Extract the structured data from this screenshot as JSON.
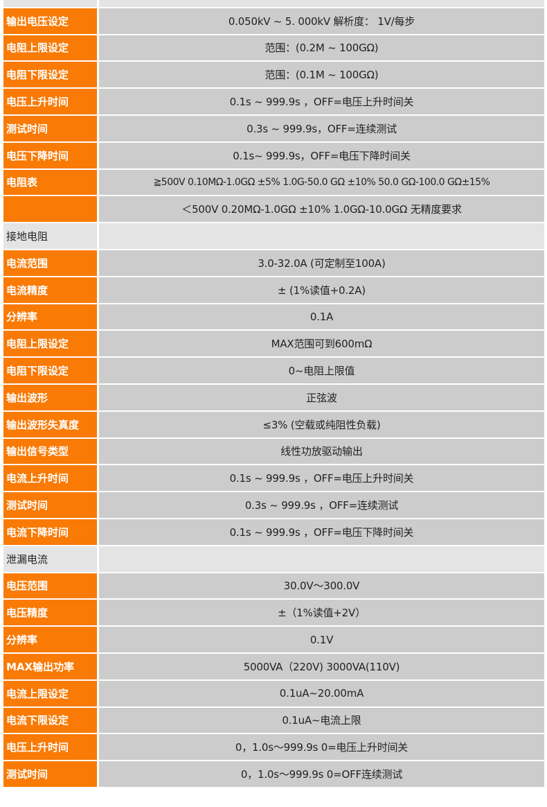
{
  "rows": [
    {
      "type": "sec",
      "label": "",
      "value": ""
    },
    {
      "type": "data",
      "label": "输出电压设定",
      "value": "0.050kV ~ 5. 000kV 解析度： 1V/每步"
    },
    {
      "type": "data",
      "label": "电阻上限设定",
      "value": "范围：(0.2M ~ 100GΩ)"
    },
    {
      "type": "data",
      "label": "电阻下限设定",
      "value": "范围：(0.1M ~ 100GΩ)"
    },
    {
      "type": "data",
      "label": "电压上升时间",
      "value": "0.1s ~ 999.9s ，OFF=电压上升时间关"
    },
    {
      "type": "data",
      "label": "测试时间",
      "value": "0.3s ~ 999.9s，OFF=连续测试"
    },
    {
      "type": "data",
      "label": "电压下降时间",
      "value": "0.1s~ 999.9s，OFF=电压下降时间关"
    },
    {
      "type": "data",
      "label": "电阻表",
      "value": "≧500V 0.10MΩ-1.0GΩ ±5% 1.0G-50.0 GΩ ±10% 50.0 GΩ-100.0 GΩ±15%"
    },
    {
      "type": "data",
      "label": "",
      "value": "＜500V 0.20MΩ-1.0GΩ ±10% 1.0GΩ-10.0GΩ 无精度要求"
    },
    {
      "type": "sec",
      "label": "接地电阻",
      "value": ""
    },
    {
      "type": "data",
      "label": "电流范围",
      "value": "3.0-32.0A (可定制至100A)"
    },
    {
      "type": "data",
      "label": "电流精度",
      "value": "± (1%读值+0.2A)"
    },
    {
      "type": "data",
      "label": "分辨率",
      "value": "0.1A"
    },
    {
      "type": "data",
      "label": "电阻上限设定",
      "value": "MAX范围可到600mΩ"
    },
    {
      "type": "data",
      "label": "电阻下限设定",
      "value": "0~电阻上限值"
    },
    {
      "type": "data",
      "label": "输出波形",
      "value": "正弦波"
    },
    {
      "type": "data",
      "label": "输出波形失真度",
      "value": "≤3% (空载或纯阻性负载)"
    },
    {
      "type": "data",
      "label": "输出信号类型",
      "value": "线性功放驱动输出"
    },
    {
      "type": "data",
      "label": "电流上升时间",
      "value": "0.1s ~ 999.9s ，OFF=电压上升时间关"
    },
    {
      "type": "data",
      "label": "测试时间",
      "value": "0.3s ~ 999.9s ，OFF=连续测试"
    },
    {
      "type": "data",
      "label": "电流下降时间",
      "value": "0.1s ~ 999.9s ，OFF=电压下降时间关"
    },
    {
      "type": "sec",
      "label": "泄漏电流",
      "value": ""
    },
    {
      "type": "data",
      "label": "电压范围",
      "value": "30.0V～300.0V"
    },
    {
      "type": "data",
      "label": "电压精度",
      "value": "±（1%读值+2V）"
    },
    {
      "type": "data",
      "label": "分辨率",
      "value": "0.1V"
    },
    {
      "type": "data",
      "label": "MAX输出功率",
      "value": "5000VA（220V) 3000VA(110V)"
    },
    {
      "type": "data",
      "label": "电流上限设定",
      "value": "0.1uA~20.00mA"
    },
    {
      "type": "data",
      "label": "电流下限设定",
      "value": "0.1uA~电流上限"
    },
    {
      "type": "data",
      "label": "电压上升时间",
      "value": "0，1.0s～999.9s 0=电压上升时间关"
    },
    {
      "type": "data",
      "label": "测试时间",
      "value": "0，1.0s～999.9s 0=OFF连续测试"
    }
  ]
}
